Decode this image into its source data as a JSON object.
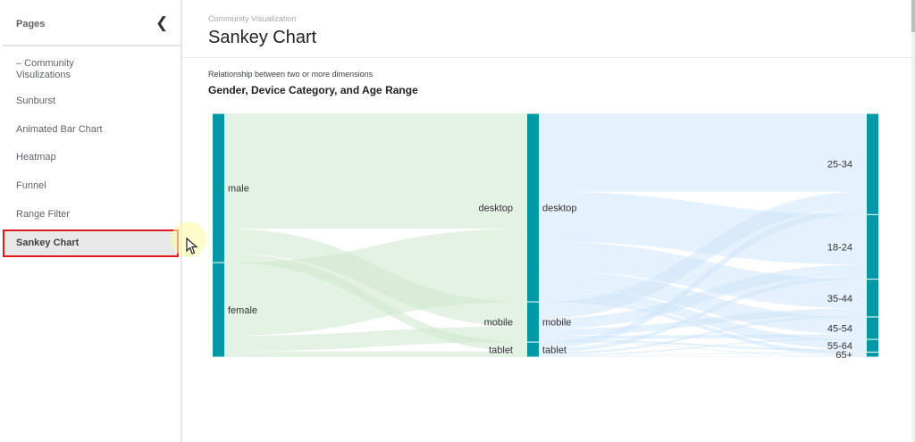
{
  "sidebar": {
    "title": "Pages",
    "collapse_icon": "chevron-left-icon",
    "items": [
      {
        "label": "– Community\nVisulizations"
      },
      {
        "label": "Sunburst"
      },
      {
        "label": "Animated Bar Chart"
      },
      {
        "label": "Heatmap"
      },
      {
        "label": "Funnel"
      },
      {
        "label": "Range Filter"
      },
      {
        "label": "Sankey Chart",
        "selected": true
      }
    ]
  },
  "header": {
    "breadcrumb": "Community Visualization",
    "title": "Sankey Chart"
  },
  "chart": {
    "subtitle": "Relationship between two or more dimensions",
    "title": "Gender, Device Category, and Age Range"
  },
  "colors": {
    "node": "#0097a7",
    "link_left": "#cde8cd",
    "link_right": "#cfe5fa",
    "selected_border": "#e0191b"
  },
  "chart_data": {
    "type": "sankey",
    "title": "Gender, Device Category, and Age Range",
    "columns": [
      [
        {
          "name": "male",
          "value": 612
        },
        {
          "name": "female",
          "value": 388
        }
      ],
      [
        {
          "name": "desktop",
          "value": 773
        },
        {
          "name": "mobile",
          "value": 165
        },
        {
          "name": "tablet",
          "value": 62
        }
      ],
      [
        {
          "name": "25-34",
          "value": 415
        },
        {
          "name": "18-24",
          "value": 265
        },
        {
          "name": "35-44",
          "value": 155
        },
        {
          "name": "45-54",
          "value": 92
        },
        {
          "name": "55-64",
          "value": 52
        },
        {
          "name": "65+",
          "value": 21
        }
      ]
    ],
    "links": [
      [
        "male",
        "desktop",
        473
      ],
      [
        "male",
        "mobile",
        101
      ],
      [
        "male",
        "tablet",
        38
      ],
      [
        "female",
        "desktop",
        300
      ],
      [
        "female",
        "mobile",
        64
      ],
      [
        "female",
        "tablet",
        24
      ],
      [
        "desktop",
        "25-34",
        321
      ],
      [
        "desktop",
        "18-24",
        205
      ],
      [
        "desktop",
        "35-44",
        120
      ],
      [
        "desktop",
        "45-54",
        71
      ],
      [
        "desktop",
        "55-64",
        40
      ],
      [
        "desktop",
        "65+",
        16
      ],
      [
        "mobile",
        "25-34",
        68
      ],
      [
        "mobile",
        "18-24",
        44
      ],
      [
        "mobile",
        "35-44",
        26
      ],
      [
        "mobile",
        "45-54",
        15
      ],
      [
        "mobile",
        "55-64",
        9
      ],
      [
        "mobile",
        "65+",
        3
      ],
      [
        "tablet",
        "25-34",
        26
      ],
      [
        "tablet",
        "18-24",
        16
      ],
      [
        "tablet",
        "35-44",
        9
      ],
      [
        "tablet",
        "45-54",
        6
      ],
      [
        "tablet",
        "55-64",
        3
      ],
      [
        "tablet",
        "65+",
        2
      ]
    ]
  }
}
